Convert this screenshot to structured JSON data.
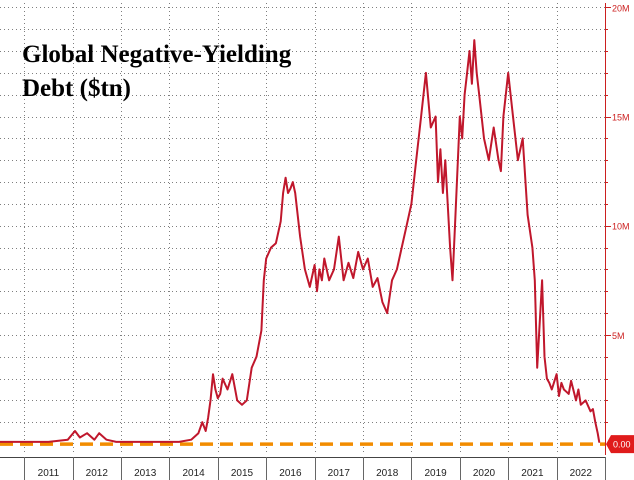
{
  "chart_data": {
    "type": "line",
    "title": [
      "Global Negative-Yielding",
      "Debt ($tn)"
    ],
    "xlabel": "",
    "ylabel": "",
    "x_ticks": [
      "2011",
      "2012",
      "2013",
      "2014",
      "2015",
      "2016",
      "2017",
      "2018",
      "2019",
      "2020",
      "2021",
      "2022"
    ],
    "y_ticks": [
      {
        "value": 5,
        "label": "5M"
      },
      {
        "value": 10,
        "label": "10M"
      },
      {
        "value": 15,
        "label": "15M"
      },
      {
        "value": 20,
        "label": "20M"
      }
    ],
    "ylim": [
      -0.5,
      20.2
    ],
    "xlim": [
      2010.5,
      2023.0
    ],
    "grid": true,
    "reference_line": {
      "value": 0,
      "label": "0.00",
      "color": "#f28c00"
    },
    "colors": {
      "line": "#c0172c",
      "axis": "#cc1f1f",
      "reference": "#f28c00",
      "badge": "#e01b1b"
    },
    "series": [
      {
        "name": "Global Negative-Yielding Debt",
        "x": [
          2010.5,
          2011.0,
          2011.5,
          2011.9,
          2012.05,
          2012.15,
          2012.3,
          2012.45,
          2012.55,
          2012.7,
          2012.9,
          2013.3,
          2013.8,
          2014.2,
          2014.45,
          2014.6,
          2014.68,
          2014.75,
          2014.8,
          2014.85,
          2014.9,
          2014.95,
          2015.0,
          2015.05,
          2015.1,
          2015.2,
          2015.3,
          2015.4,
          2015.5,
          2015.6,
          2015.7,
          2015.8,
          2015.9,
          2015.95,
          2016.0,
          2016.1,
          2016.2,
          2016.3,
          2016.35,
          2016.4,
          2016.45,
          2016.5,
          2016.55,
          2016.6,
          2016.7,
          2016.8,
          2016.9,
          2017.0,
          2017.05,
          2017.1,
          2017.15,
          2017.2,
          2017.3,
          2017.4,
          2017.5,
          2017.6,
          2017.7,
          2017.8,
          2017.9,
          2018.0,
          2018.1,
          2018.2,
          2018.3,
          2018.4,
          2018.5,
          2018.6,
          2018.7,
          2018.8,
          2018.9,
          2019.0,
          2019.1,
          2019.2,
          2019.3,
          2019.4,
          2019.5,
          2019.55,
          2019.6,
          2019.65,
          2019.7,
          2019.75,
          2019.8,
          2019.85,
          2019.9,
          2020.0,
          2020.05,
          2020.1,
          2020.15,
          2020.2,
          2020.25,
          2020.3,
          2020.35,
          2020.4,
          2020.5,
          2020.6,
          2020.7,
          2020.8,
          2020.85,
          2020.9,
          2021.0,
          2021.05,
          2021.1,
          2021.2,
          2021.3,
          2021.4,
          2021.5,
          2021.55,
          2021.6,
          2021.7,
          2021.75,
          2021.8,
          2021.85,
          2021.9,
          2022.0,
          2022.05,
          2022.1,
          2022.15,
          2022.2,
          2022.25,
          2022.3,
          2022.4,
          2022.45,
          2022.5,
          2022.6,
          2022.7,
          2022.75,
          2022.8,
          2022.85,
          2022.88
        ],
        "values": [
          0.1,
          0.1,
          0.1,
          0.2,
          0.6,
          0.3,
          0.5,
          0.2,
          0.5,
          0.2,
          0.1,
          0.1,
          0.1,
          0.1,
          0.2,
          0.5,
          1.0,
          0.6,
          1.2,
          2.0,
          3.2,
          2.5,
          2.1,
          2.3,
          3.0,
          2.5,
          3.2,
          2.0,
          1.8,
          2.0,
          3.5,
          4.0,
          5.2,
          7.5,
          8.5,
          9.0,
          9.2,
          10.2,
          11.5,
          12.2,
          11.5,
          11.7,
          12.0,
          11.5,
          9.5,
          8.0,
          7.2,
          8.2,
          7.0,
          8.0,
          7.5,
          8.5,
          7.5,
          8.0,
          9.5,
          7.5,
          8.3,
          7.6,
          8.8,
          8.0,
          8.5,
          7.2,
          7.6,
          6.5,
          6.0,
          7.5,
          8.0,
          9.0,
          10.0,
          11.0,
          13.0,
          15.0,
          17.0,
          14.5,
          15.0,
          12.0,
          13.5,
          11.5,
          13.0,
          11.0,
          9.0,
          7.5,
          10.0,
          15.0,
          14.0,
          16.0,
          17.0,
          18.0,
          16.5,
          18.5,
          17.0,
          16.0,
          14.0,
          13.0,
          14.5,
          13.0,
          12.5,
          15.0,
          17.0,
          16.0,
          15.0,
          13.0,
          14.0,
          10.5,
          9.0,
          7.5,
          3.5,
          7.5,
          4.0,
          3.0,
          2.8,
          2.5,
          3.2,
          2.2,
          2.8,
          2.5,
          2.4,
          2.3,
          2.9,
          2.0,
          2.5,
          1.8,
          2.0,
          1.5,
          1.6,
          1.0,
          0.5,
          0.1
        ]
      }
    ]
  }
}
